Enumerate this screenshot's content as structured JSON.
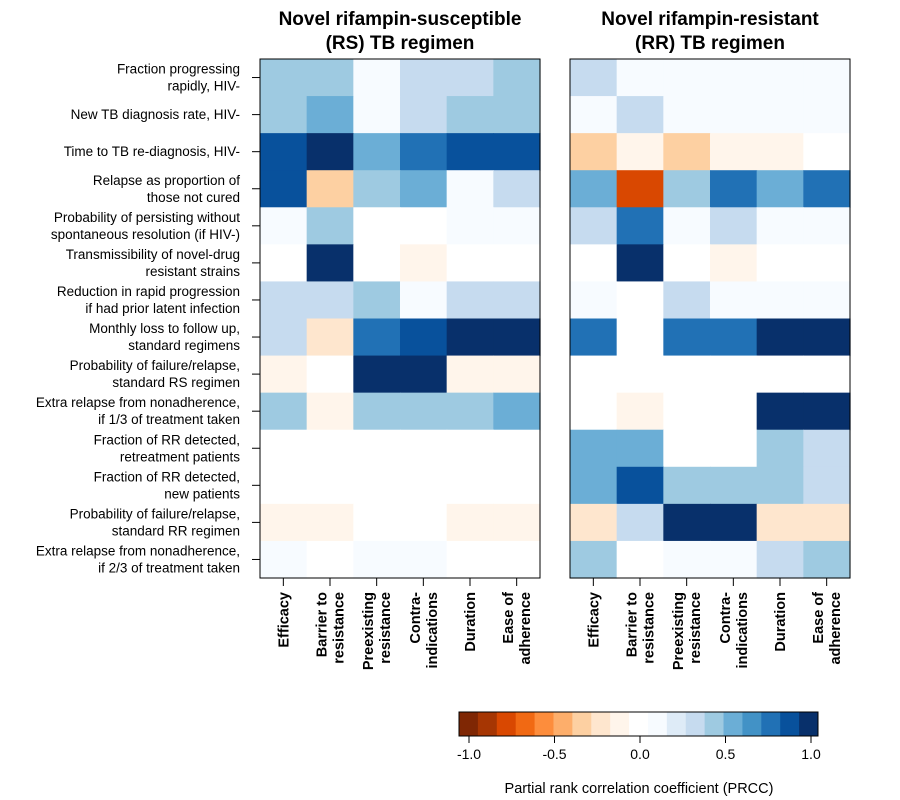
{
  "chart_data": {
    "type": "heatmap",
    "colorbar": {
      "title": "Partial rank correlation coefficient (PRCC)",
      "range": [
        -1.0,
        1.0
      ],
      "ticks": [
        "-1.0",
        "-0.5",
        "0.0",
        "0.5",
        "1.0"
      ],
      "colors": [
        "#7f2704",
        "#a63603",
        "#d94801",
        "#f16913",
        "#fd8d3c",
        "#fdae6b",
        "#fdd0a2",
        "#fee6ce",
        "#fff5eb",
        "#ffffff",
        "#f7fbff",
        "#deebf7",
        "#c6dbef",
        "#9ecae1",
        "#6baed6",
        "#4292c6",
        "#2171b5",
        "#08519c",
        "#08306b"
      ]
    },
    "row_labels": [
      [
        "Fraction progressing",
        "rapidly, HIV-"
      ],
      [
        "New TB diagnosis rate, HIV-"
      ],
      [
        "Time to TB re-diagnosis, HIV-"
      ],
      [
        "Relapse as proportion of",
        "those not cured"
      ],
      [
        "Probability of persisting without",
        "spontaneous resolution (if HIV-)"
      ],
      [
        "Transmissibility of novel-drug",
        "resistant strains"
      ],
      [
        "Reduction in rapid progression",
        "if had prior latent infection"
      ],
      [
        "Monthly loss to follow up,",
        "standard regimens"
      ],
      [
        "Probability of failure/relapse,",
        "standard RS regimen"
      ],
      [
        "Extra relapse from nonadherence,",
        "if 1/3 of treatment taken"
      ],
      [
        "Fraction of RR detected,",
        "retreatment patients"
      ],
      [
        "Fraction of RR detected,",
        "new patients"
      ],
      [
        "Probability of failure/relapse,",
        "standard RR regimen"
      ],
      [
        "Extra relapse from nonadherence,",
        "if 2/3 of treatment taken"
      ]
    ],
    "col_labels": [
      [
        "Efficacy"
      ],
      [
        "Barrier to",
        "resistance"
      ],
      [
        "Preexisting",
        "resistance"
      ],
      [
        "Contra-",
        "indications"
      ],
      [
        "Duration"
      ],
      [
        "Ease of",
        "adherence"
      ]
    ],
    "panels": [
      {
        "title": [
          "Novel rifampin-susceptible",
          "(RS) TB regimen"
        ],
        "values": [
          [
            0.4,
            0.4,
            0.15,
            0.3,
            0.3,
            0.4
          ],
          [
            0.4,
            0.55,
            0.15,
            0.3,
            0.4,
            0.4
          ],
          [
            0.85,
            0.95,
            0.55,
            0.7,
            0.85,
            0.85
          ],
          [
            0.85,
            -0.3,
            0.4,
            0.55,
            0.15,
            0.3
          ],
          [
            0.15,
            0.4,
            0.05,
            0.05,
            0.15,
            0.15
          ],
          [
            0.0,
            0.95,
            0.0,
            -0.1,
            0.05,
            0.05
          ],
          [
            0.3,
            0.3,
            0.4,
            0.15,
            0.3,
            0.3
          ],
          [
            0.3,
            -0.2,
            0.7,
            0.85,
            1.0,
            1.0
          ],
          [
            -0.1,
            0.05,
            1.0,
            1.0,
            -0.1,
            -0.1
          ],
          [
            0.4,
            -0.1,
            0.4,
            0.4,
            0.4,
            0.55
          ],
          [
            0.0,
            0.0,
            0.0,
            0.0,
            0.0,
            0.0
          ],
          [
            0.0,
            0.0,
            0.0,
            0.0,
            0.0,
            0.0
          ],
          [
            -0.1,
            -0.1,
            0.0,
            0.0,
            -0.1,
            -0.1
          ],
          [
            0.15,
            0.0,
            0.15,
            0.15,
            0.05,
            0.05
          ]
        ]
      },
      {
        "title": [
          "Novel rifampin-resistant",
          "(RR) TB regimen"
        ],
        "values": [
          [
            0.3,
            0.15,
            0.15,
            0.15,
            0.15,
            0.15
          ],
          [
            0.15,
            0.3,
            0.15,
            0.15,
            0.15,
            0.15
          ],
          [
            -0.3,
            -0.1,
            -0.3,
            -0.1,
            -0.1,
            0.0
          ],
          [
            0.55,
            -0.7,
            0.4,
            0.7,
            0.55,
            0.7
          ],
          [
            0.3,
            0.7,
            0.15,
            0.3,
            0.15,
            0.15
          ],
          [
            0.0,
            0.95,
            0.0,
            -0.1,
            0.0,
            0.0
          ],
          [
            0.15,
            0.05,
            0.3,
            0.15,
            0.15,
            0.15
          ],
          [
            0.7,
            0.0,
            0.7,
            0.7,
            1.0,
            1.0
          ],
          [
            0.0,
            0.05,
            0.0,
            0.0,
            0.0,
            0.0
          ],
          [
            0.05,
            -0.1,
            0.05,
            0.05,
            0.95,
            0.95
          ],
          [
            0.55,
            0.55,
            0.0,
            0.0,
            0.4,
            0.3
          ],
          [
            0.55,
            0.85,
            0.4,
            0.4,
            0.4,
            0.3
          ],
          [
            -0.2,
            0.3,
            0.95,
            0.95,
            -0.2,
            -0.2
          ],
          [
            0.4,
            0.0,
            0.15,
            0.15,
            0.3,
            0.4
          ]
        ]
      }
    ]
  }
}
